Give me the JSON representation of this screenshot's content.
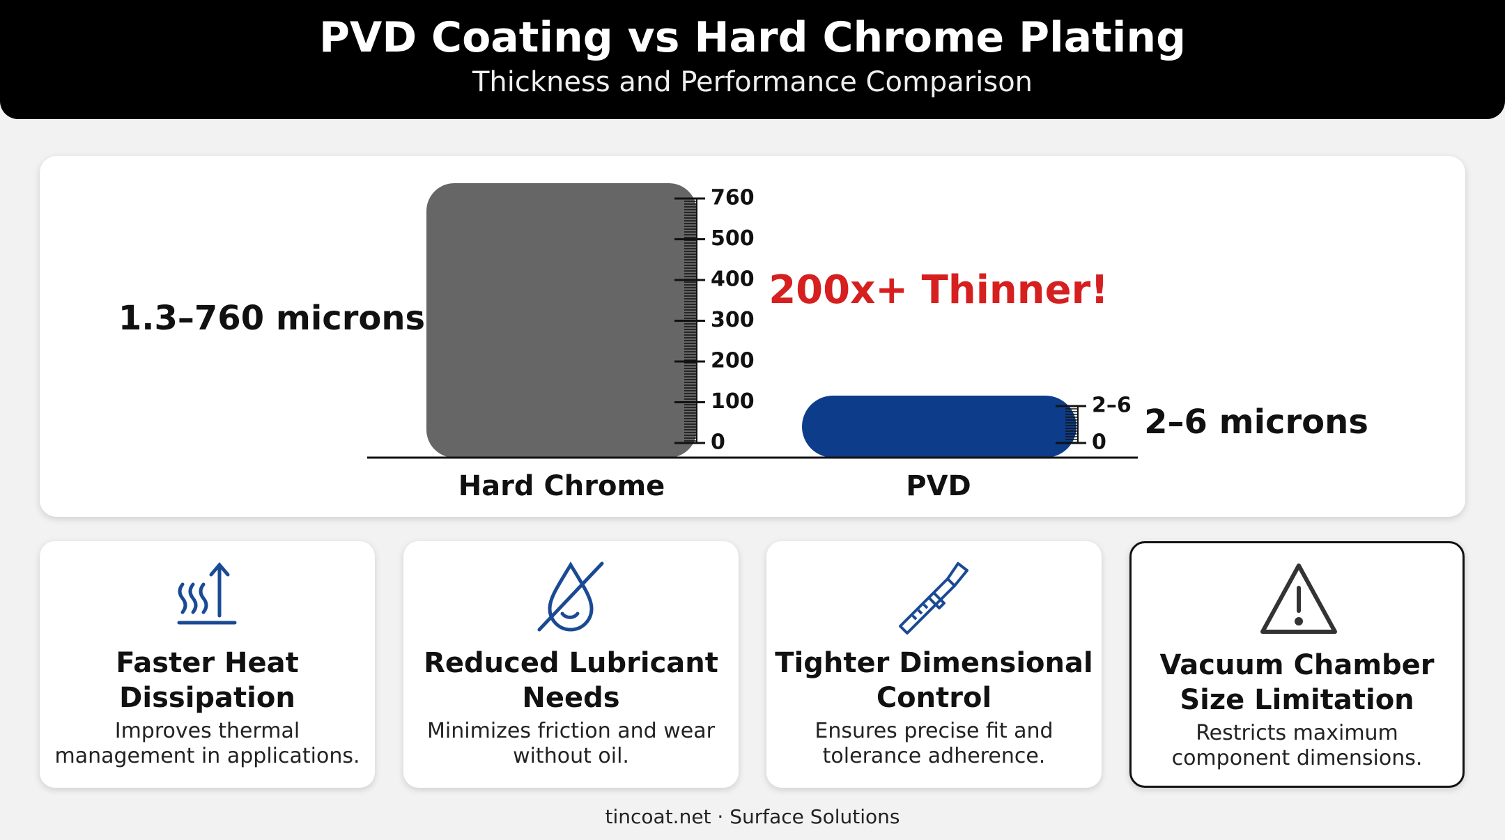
{
  "header": {
    "title": "PVD Coating vs Hard Chrome Plating",
    "subtitle": "Thickness and Performance Comparison"
  },
  "comparison": {
    "bars": [
      {
        "name": "Hard Chrome",
        "range_label": "1.3–760 microns",
        "ticks": [
          760,
          500,
          400,
          300,
          200,
          100,
          0
        ]
      },
      {
        "name": "PVD",
        "range_label": "2–6 microns",
        "ticks": [
          "2–6",
          0
        ]
      }
    ],
    "callout": "200x+ Thinner!"
  },
  "cards": [
    {
      "title": "Faster Heat Dissipation",
      "description": "Improves thermal management in applications."
    },
    {
      "title": "Reduced Lubricant Needs",
      "description": "Minimizes friction and wear without oil."
    },
    {
      "title": "Tighter Dimensional Control",
      "description": "Ensures precise fit and tolerance adherence."
    },
    {
      "title": "Vacuum Chamber Size Limitation",
      "description": "Restricts maximum component dimensions."
    }
  ],
  "footer": "tincoat.net · Surface Solutions"
}
